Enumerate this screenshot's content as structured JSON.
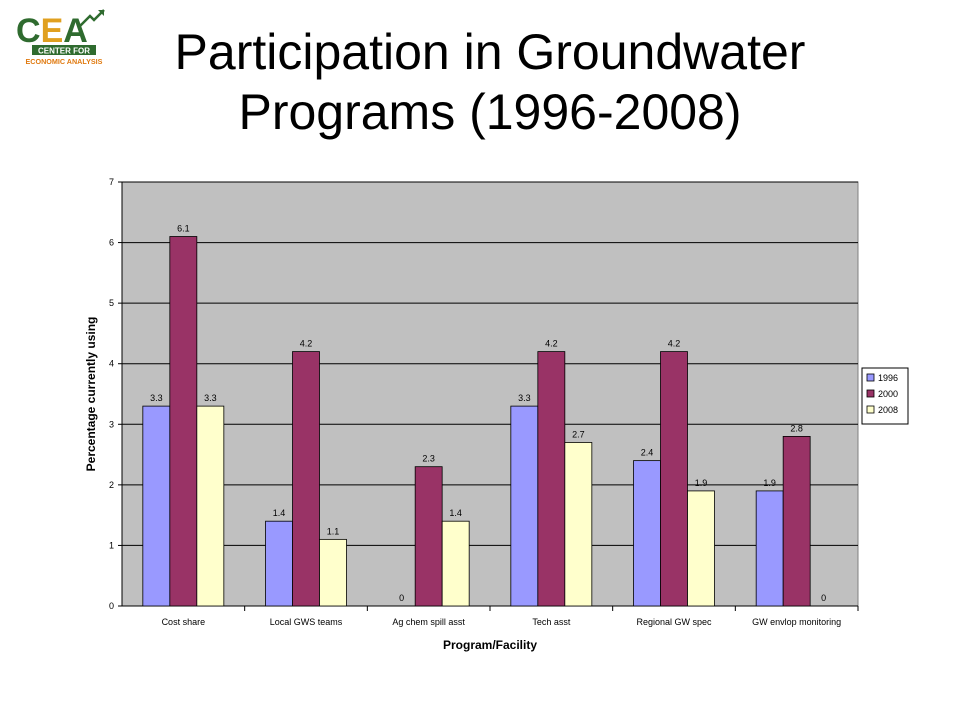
{
  "title_line1": "Participation in Groundwater",
  "title_line2": "Programs (1996-2008)",
  "logo": {
    "big": "CEA",
    "line1": "CENTER FOR",
    "line2": "ECONOMIC ANALYSIS",
    "colors": {
      "c": "#2f6b2f",
      "e": "#e0a020",
      "a": "#2f6b2f",
      "banner": "#2f6b2f",
      "sub": "#e07a10"
    }
  },
  "chart_data": {
    "type": "bar",
    "categories": [
      "Cost share",
      "Local GWS teams",
      "Ag chem spill asst",
      "Tech asst",
      "Regional GW spec",
      "GW envlop monitoring"
    ],
    "series": [
      {
        "name": "1996",
        "values": [
          3.3,
          1.4,
          0,
          3.3,
          2.4,
          1.9
        ],
        "color": "#9999ff"
      },
      {
        "name": "2000",
        "values": [
          6.1,
          4.2,
          2.3,
          4.2,
          4.2,
          2.8
        ],
        "color": "#993366"
      },
      {
        "name": "2008",
        "values": [
          3.3,
          1.1,
          1.4,
          2.7,
          1.9,
          0
        ],
        "color": "#ffffcc"
      }
    ],
    "value_labels": [
      [
        "3.3",
        "1.4",
        "0",
        "3.3",
        "2.4",
        "1.9"
      ],
      [
        "6.1",
        "4.2",
        "2.3",
        "4.2",
        "4.2",
        "2.8"
      ],
      [
        "3.3",
        "1.1",
        "1.4",
        "2.7",
        "1.9",
        "0"
      ]
    ],
    "xlabel": "Program/Facility",
    "ylabel": "Percentage currently using",
    "ylim": [
      0,
      7
    ],
    "yticks": [
      0,
      1,
      2,
      3,
      4,
      5,
      6,
      7
    ],
    "grid": true,
    "plot_background": "#c0c0c0",
    "legend_position": "right"
  }
}
